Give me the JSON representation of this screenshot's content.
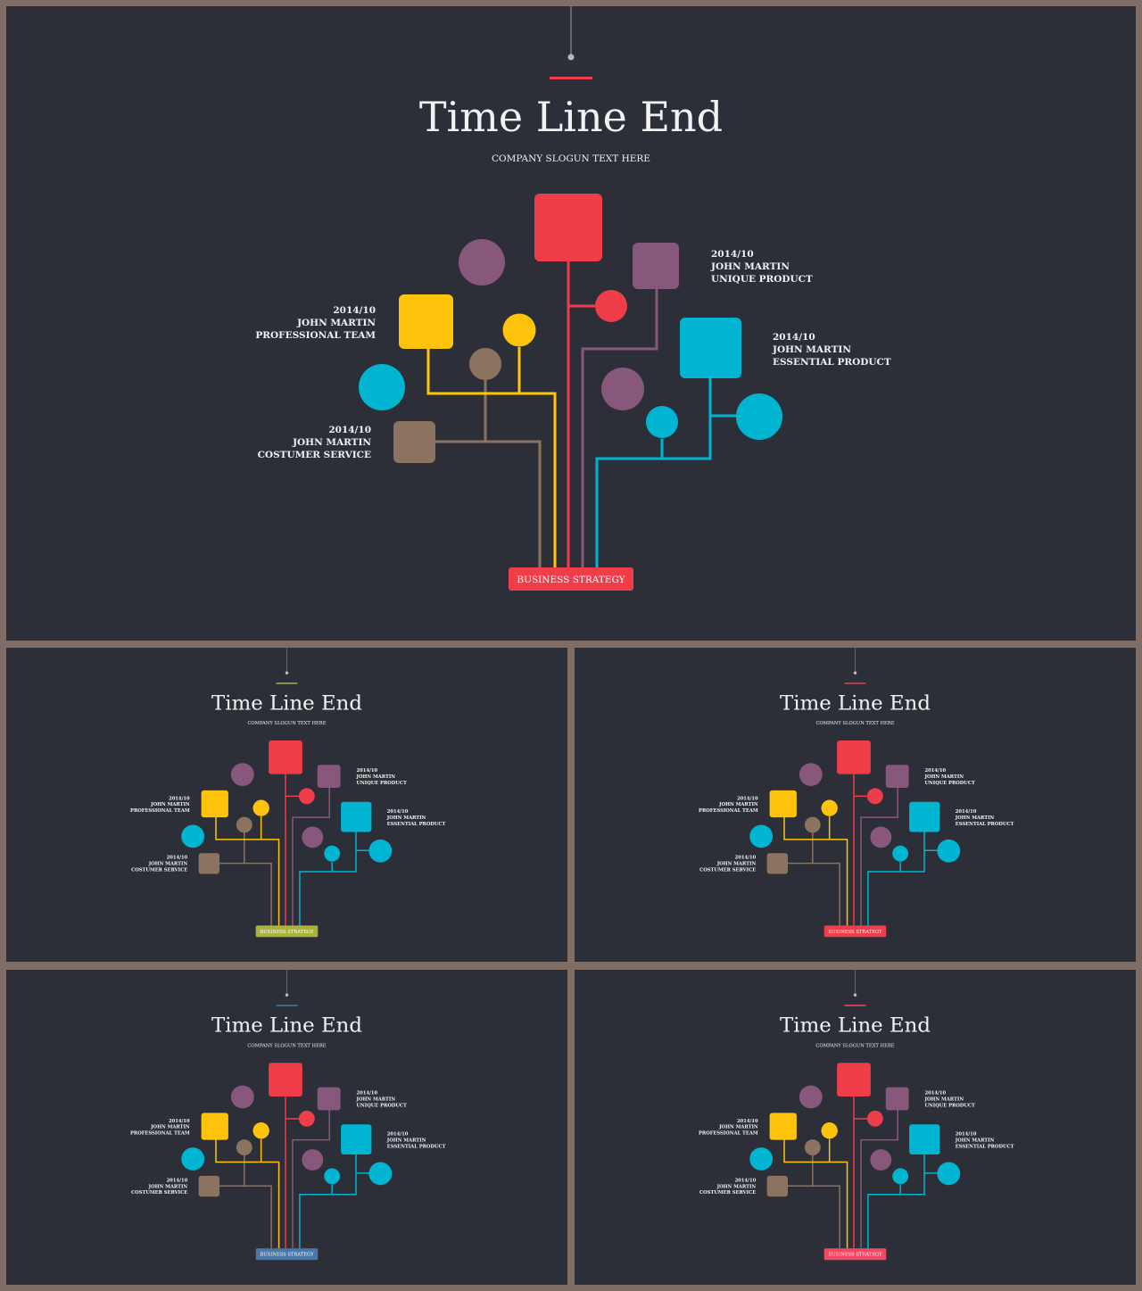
{
  "diagram": {
    "title": "Time Line End",
    "subtitle": "COMPANY SLOGUN TEXT HERE",
    "root_label": "BUSINESS STRATEGY",
    "labels": {
      "professional": [
        "2014/10",
        "JOHN MARTIN",
        "PROFESSIONAL TEAM"
      ],
      "customer": [
        "2014/10",
        "JOHN MARTIN",
        "COSTUMER SERVICE"
      ],
      "unique": [
        "2014/10",
        "JOHN MARTIN",
        "UNIQUE PRODUCT"
      ],
      "essential": [
        "2014/10",
        "JOHN MARTIN",
        "ESSENTIAL PRODUCT"
      ]
    },
    "colors": {
      "background": "#2d2f38",
      "frame": "#7f6d66",
      "red": "#ef3d4a",
      "purple": "#88587c",
      "yellow": "#ffc30b",
      "brown": "#8b7360",
      "cyan": "#00b5d2",
      "text": "#f2f2f2"
    }
  },
  "variants": [
    {
      "id": "main",
      "accent": "#ef3d4a"
    },
    {
      "id": "green",
      "accent": "#a9b53a"
    },
    {
      "id": "red",
      "accent": "#ef3d4a"
    },
    {
      "id": "blue",
      "accent": "#4a78a8"
    },
    {
      "id": "pink",
      "accent": "#f04a63"
    }
  ]
}
